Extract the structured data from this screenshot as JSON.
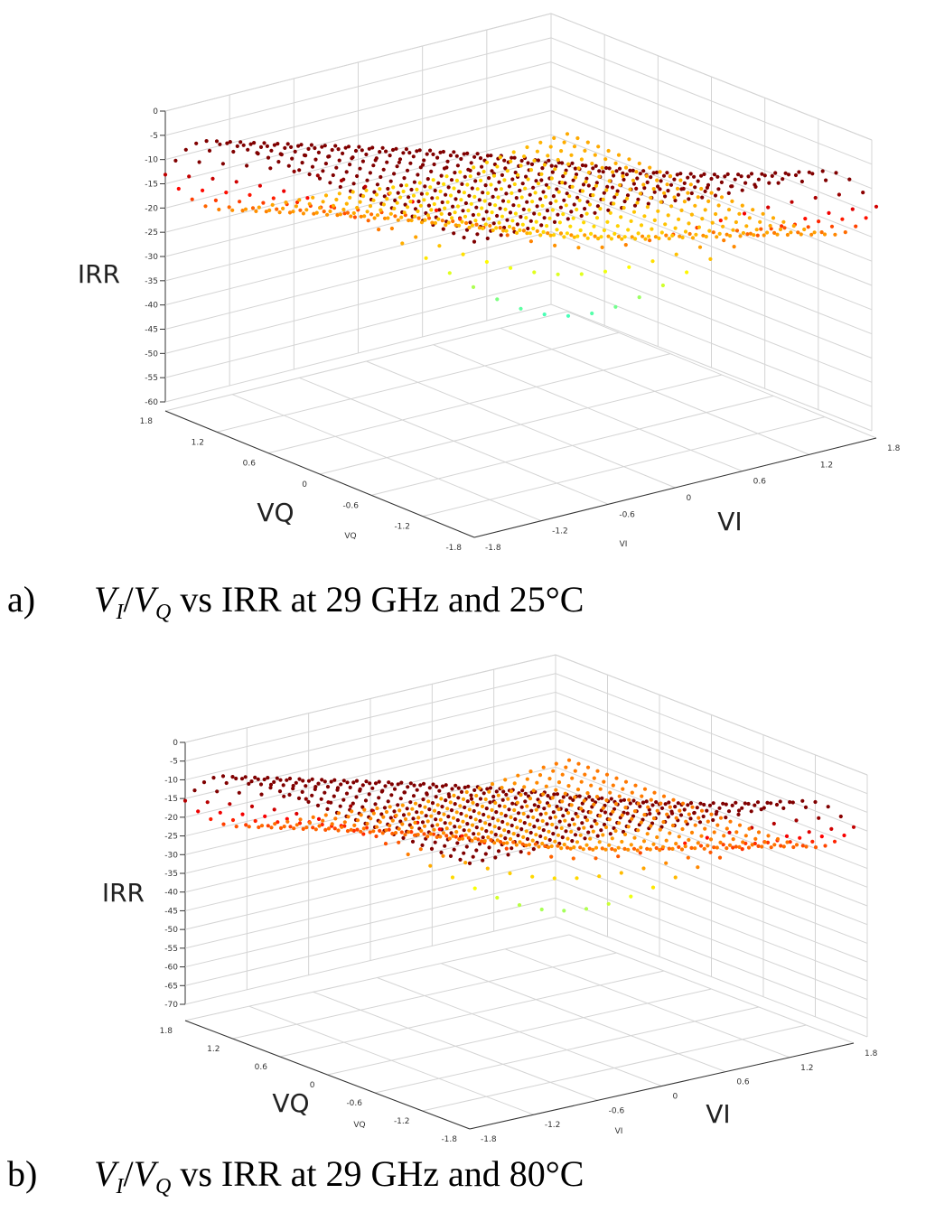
{
  "chart_data": [
    {
      "type": "scatter",
      "panel": "a",
      "caption": {
        "label": "a)",
        "v_i": "V",
        "sub_i": "I",
        "slash": "/",
        "v_q": "V",
        "sub_q": "Q",
        "rest": " vs IRR at 29 GHz and 25°C"
      },
      "zlabel": "IRR",
      "ylabel_big": "VQ",
      "ylabel_small": "VQ",
      "xlabel_big": "VI",
      "xlabel_small": "VI",
      "zticks": [
        "0",
        "-5",
        "-10",
        "-15",
        "-20",
        "-25",
        "-30",
        "-35",
        "-40",
        "-45",
        "-50",
        "-55",
        "-60"
      ],
      "zlim": [
        -60,
        0
      ],
      "vq_ticks": [
        "1.8",
        "1.2",
        "0.6",
        "0",
        "-0.6",
        "-1.2",
        "-1.8"
      ],
      "vi_ticks": [
        "-1.8",
        "-1.2",
        "-0.6",
        "0",
        "0.6",
        "1.2",
        "1.8"
      ],
      "xlim": [
        -1.8,
        1.8
      ],
      "ylim": [
        -1.8,
        1.8
      ],
      "grid": true,
      "colormap": "jet"
    },
    {
      "type": "scatter",
      "panel": "b",
      "caption": {
        "label": "b)",
        "v_i": "V",
        "sub_i": "I",
        "slash": "/",
        "v_q": "V",
        "sub_q": "Q",
        "rest": " vs IRR at 29 GHz and 80°C"
      },
      "zlabel": "IRR",
      "ylabel_big": "VQ",
      "ylabel_small": "VQ",
      "xlabel_big": "VI",
      "xlabel_small": "VI",
      "zticks": [
        "0",
        "-5",
        "-10",
        "-15",
        "-20",
        "-25",
        "-30",
        "-35",
        "-40",
        "-45",
        "-50",
        "-55",
        "-60",
        "-65",
        "-70"
      ],
      "zlim": [
        -70,
        0
      ],
      "vq_ticks": [
        "1.8",
        "1.2",
        "0.6",
        "0",
        "-0.6",
        "-1.2",
        "-1.8"
      ],
      "vi_ticks": [
        "-1.8",
        "-1.2",
        "-0.6",
        "0",
        "0.6",
        "1.2",
        "1.8"
      ],
      "xlim": [
        -1.8,
        1.8
      ],
      "ylim": [
        -1.8,
        1.8
      ],
      "grid": true,
      "colormap": "jet"
    }
  ]
}
